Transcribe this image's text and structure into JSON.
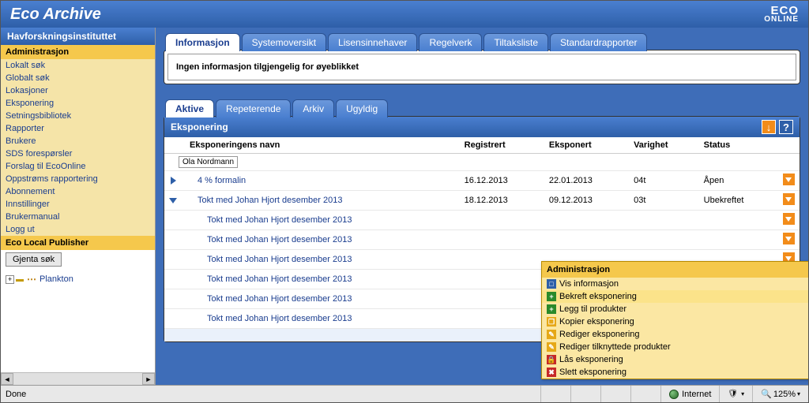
{
  "app": {
    "title": "Eco Archive",
    "logo_top": "ECO",
    "logo_bot": "ONLINE"
  },
  "sidebar": {
    "header": "Havforskningsinstituttet",
    "admin_label": "Administrasjon",
    "links": [
      "Lokalt søk",
      "Globalt søk",
      "Lokasjoner",
      "Eksponering",
      "Setningsbibliotek",
      "Rapporter",
      "Brukere",
      "SDS forespørsler",
      "Forslag til EcoOnline",
      "Oppstrøms rapportering",
      "Abonnement",
      "Innstillinger",
      "Brukermanual",
      "Logg ut"
    ],
    "publisher_label": "Eco Local Publisher",
    "gjenta_btn": "Gjenta søk",
    "tree_item": "Plankton"
  },
  "tabs1": [
    "Informasjon",
    "Systemoversikt",
    "Lisensinnehaver",
    "Regelverk",
    "Tiltaksliste",
    "Standardrapporter"
  ],
  "info_text": "Ingen informasjon tilgjengelig for øyeblikket",
  "tabs2": [
    "Aktive",
    "Repeterende",
    "Arkiv",
    "Ugyldig"
  ],
  "expo": {
    "title": "Eksponering",
    "cols": [
      "Eksponeringens navn",
      "Registrert",
      "Eksponert",
      "Varighet",
      "Status"
    ],
    "user": "Ola Nordmann",
    "rows": [
      {
        "name": "4 % formalin",
        "reg": "16.12.2013",
        "exp": "22.01.2013",
        "dur": "04t",
        "status": "Åpen",
        "tri": "right",
        "indent": 1
      },
      {
        "name": "Tokt med Johan Hjort desember 2013",
        "reg": "18.12.2013",
        "exp": "09.12.2013",
        "dur": "03t",
        "status": "Ubekreftet",
        "tri": "down",
        "indent": 1
      },
      {
        "name": "Tokt med Johan Hjort desember 2013",
        "reg": "",
        "exp": "",
        "dur": "",
        "status": "",
        "indent": 2
      },
      {
        "name": "Tokt med Johan Hjort desember 2013",
        "reg": "",
        "exp": "",
        "dur": "",
        "status": "",
        "indent": 2
      },
      {
        "name": "Tokt med Johan Hjort desember 2013",
        "reg": "",
        "exp": "",
        "dur": "",
        "status": "",
        "indent": 2
      },
      {
        "name": "Tokt med Johan Hjort desember 2013",
        "reg": "",
        "exp": "",
        "dur": "",
        "status": "",
        "indent": 2
      },
      {
        "name": "Tokt med Johan Hjort desember 2013",
        "reg": "",
        "exp": "",
        "dur": "",
        "status": "",
        "indent": 2
      },
      {
        "name": "Tokt med Johan Hjort desember 2013",
        "reg": "",
        "exp": "",
        "dur": "",
        "status": "",
        "indent": 2
      }
    ]
  },
  "ctx": {
    "title": "Administrasjon",
    "items": [
      {
        "label": "Vis informasjon",
        "icon": "ci-blue",
        "glyph": "□"
      },
      {
        "label": "Bekreft eksponering",
        "icon": "ci-green",
        "glyph": "+",
        "hl": true
      },
      {
        "label": "Legg til produkter",
        "icon": "ci-green",
        "glyph": "+"
      },
      {
        "label": "Kopier eksponering",
        "icon": "ci-yellow",
        "glyph": "❐"
      },
      {
        "label": "Rediger eksponering",
        "icon": "ci-orange",
        "glyph": "✎"
      },
      {
        "label": "Rediger tilknyttede produkter",
        "icon": "ci-orange",
        "glyph": "✎"
      },
      {
        "label": "Lås eksponering",
        "icon": "ci-red",
        "glyph": "🔒"
      },
      {
        "label": "Slett eksponering",
        "icon": "ci-red",
        "glyph": "✖"
      }
    ]
  },
  "status": {
    "done": "Done",
    "net": "Internet",
    "zoom": "125%"
  }
}
